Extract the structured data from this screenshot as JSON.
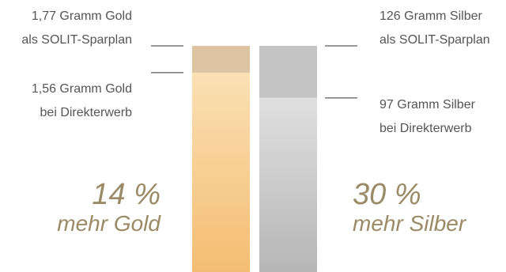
{
  "chart_data": {
    "type": "bar",
    "title": "",
    "bars": [
      {
        "metal": "gold",
        "sparplan": {
          "value": 1.77,
          "line1": "1,77 Gramm Gold",
          "line2": "als SOLIT-Sparplan"
        },
        "direct": {
          "value": 1.56,
          "line1": "1,56 Gramm Gold",
          "line2": "bei Direkterwerb"
        },
        "gain": {
          "percent": "14 %",
          "label": "mehr Gold"
        }
      },
      {
        "metal": "silver",
        "sparplan": {
          "value": 126,
          "line1": "126 Gramm Silber",
          "line2": "als SOLIT-Sparplan"
        },
        "direct": {
          "value": 97,
          "line1": "97 Gramm Silber",
          "line2": "bei Direkterwerb"
        },
        "gain": {
          "percent": "30 %",
          "label": "mehr Silber"
        }
      }
    ],
    "colors": {
      "gold_top": "#dcc4a2",
      "gold_grad_start": "#fbe0b4",
      "gold_grad_end": "#f4bd72",
      "silver_top": "#c4c4c4",
      "silver_grad_start": "#e0e0e0",
      "silver_grad_end": "#b6b6b6",
      "leader_line": "#333333",
      "percent_text": "#9a8a66"
    }
  }
}
